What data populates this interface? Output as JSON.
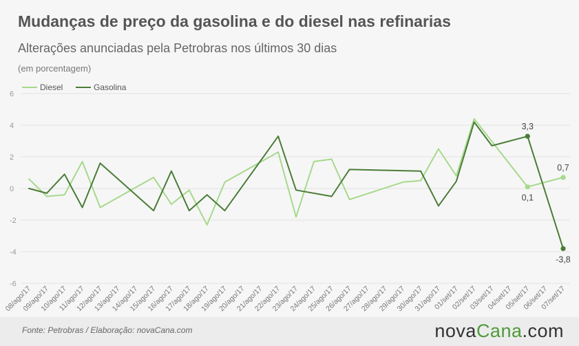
{
  "header": {
    "title": "Mudanças de preço da gasolina e do diesel nas refinarias",
    "subtitle": "Alterações anunciadas pela Petrobras nos últimos 30 dias",
    "units": "(em porcentagem)"
  },
  "footer": {
    "source": "Fonte:  Petrobras  / Elaboração:  novaCana.com",
    "logo_main": "nova",
    "logo_accent": "Cana",
    "logo_suffix": ".com"
  },
  "colors": {
    "diesel": "#a6d98c",
    "gasolina": "#4a7c36",
    "grid": "#e2e2e2",
    "axis_text": "#777777"
  },
  "chart_data": {
    "type": "line",
    "ylim": [
      -6,
      6
    ],
    "yticks": [
      6,
      4,
      2,
      0,
      -2,
      -4,
      -6
    ],
    "grid": true,
    "legend_position": "top-left",
    "x": [
      "08/ago/17",
      "09/ago/17",
      "10/ago/17",
      "11/ago/17",
      "12/ago/17",
      "13/ago/17",
      "14/ago/17",
      "15/ago/17",
      "16/ago/17",
      "17/ago/17",
      "18/ago/17",
      "19/ago/17",
      "20/ago/17",
      "21/ago/17",
      "22/ago/17",
      "23/ago/17",
      "24/ago/17",
      "25/ago/17",
      "26/ago/17",
      "27/ago/17",
      "28/ago/17",
      "29/ago/17",
      "30/ago/17",
      "31/ago/17",
      "01/set/17",
      "02/set/17",
      "03/set/17",
      "04/set/17",
      "05/set/17",
      "06/set/17",
      "07/set/17"
    ],
    "series": [
      {
        "name": "Diesel",
        "color_key": "diesel",
        "points": [
          [
            0,
            0.6
          ],
          [
            1,
            -0.5
          ],
          [
            2,
            -0.4
          ],
          [
            3,
            1.7
          ],
          [
            4,
            -1.2
          ],
          [
            7,
            0.7
          ],
          [
            8,
            -1.0
          ],
          [
            9,
            -0.1
          ],
          [
            10,
            -2.3
          ],
          [
            11,
            0.4
          ],
          [
            14,
            2.3
          ],
          [
            15,
            -1.8
          ],
          [
            16,
            1.7
          ],
          [
            17,
            1.85
          ],
          [
            18,
            -0.7
          ],
          [
            21,
            0.4
          ],
          [
            22,
            0.5
          ],
          [
            23,
            2.5
          ],
          [
            24,
            0.8
          ],
          [
            25,
            4.4
          ],
          [
            28,
            0.1
          ],
          [
            30,
            0.7
          ]
        ],
        "labels": [
          {
            "index": 28,
            "text": "0,1"
          },
          {
            "index": 30,
            "text": "0,7"
          }
        ]
      },
      {
        "name": "Gasolina",
        "color_key": "gasolina",
        "points": [
          [
            0,
            0.0
          ],
          [
            1,
            -0.3
          ],
          [
            2,
            0.9
          ],
          [
            3,
            -1.2
          ],
          [
            4,
            1.6
          ],
          [
            7,
            -1.4
          ],
          [
            8,
            1.1
          ],
          [
            9,
            -1.4
          ],
          [
            10,
            -0.4
          ],
          [
            11,
            -1.4
          ],
          [
            14,
            3.3
          ],
          [
            15,
            -0.1
          ],
          [
            17,
            -0.5
          ],
          [
            18,
            1.2
          ],
          [
            22,
            1.1
          ],
          [
            23,
            -1.1
          ],
          [
            24,
            0.45
          ],
          [
            25,
            4.2
          ],
          [
            26,
            2.7
          ],
          [
            28,
            3.3
          ],
          [
            30,
            -3.8
          ]
        ],
        "labels": [
          {
            "index": 28,
            "text": "3,3"
          },
          {
            "index": 30,
            "text": "-3,8"
          }
        ]
      }
    ]
  }
}
